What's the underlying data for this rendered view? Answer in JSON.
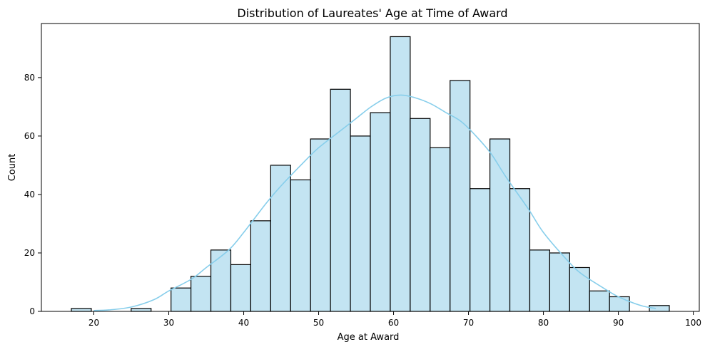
{
  "chart_data": {
    "type": "bar",
    "title": "Distribution of Laureates' Age at Time of Award",
    "xlabel": "Age at Award",
    "ylabel": "Count",
    "xlim": [
      13,
      100.8
    ],
    "ylim": [
      0,
      98.5
    ],
    "xticks": [
      20,
      30,
      40,
      50,
      60,
      70,
      80,
      90,
      100
    ],
    "yticks": [
      0,
      20,
      40,
      60,
      80
    ],
    "bin_start": 17,
    "bin_width": 2.66,
    "values": [
      1,
      0,
      0,
      1,
      0,
      8,
      12,
      21,
      16,
      31,
      50,
      45,
      59,
      76,
      60,
      68,
      94,
      66,
      56,
      79,
      42,
      59,
      42,
      21,
      20,
      15,
      7,
      5,
      0,
      2
    ],
    "kde": {
      "x": [
        20,
        22,
        25,
        28,
        30,
        33,
        35,
        38,
        40,
        43,
        45,
        48,
        50,
        53,
        55,
        57,
        59,
        61,
        63,
        65,
        67,
        69,
        71,
        73,
        75,
        78,
        80,
        83,
        85,
        88,
        90,
        93,
        95
      ],
      "y": [
        0.3,
        0.5,
        1.5,
        4,
        7,
        11,
        15,
        21,
        27,
        37,
        43,
        51,
        56,
        62,
        66,
        70,
        73,
        74,
        73,
        71,
        68,
        65,
        60,
        54,
        46,
        35,
        27,
        18,
        13,
        8,
        5,
        2,
        1
      ]
    },
    "grid": false,
    "legend": "none"
  }
}
